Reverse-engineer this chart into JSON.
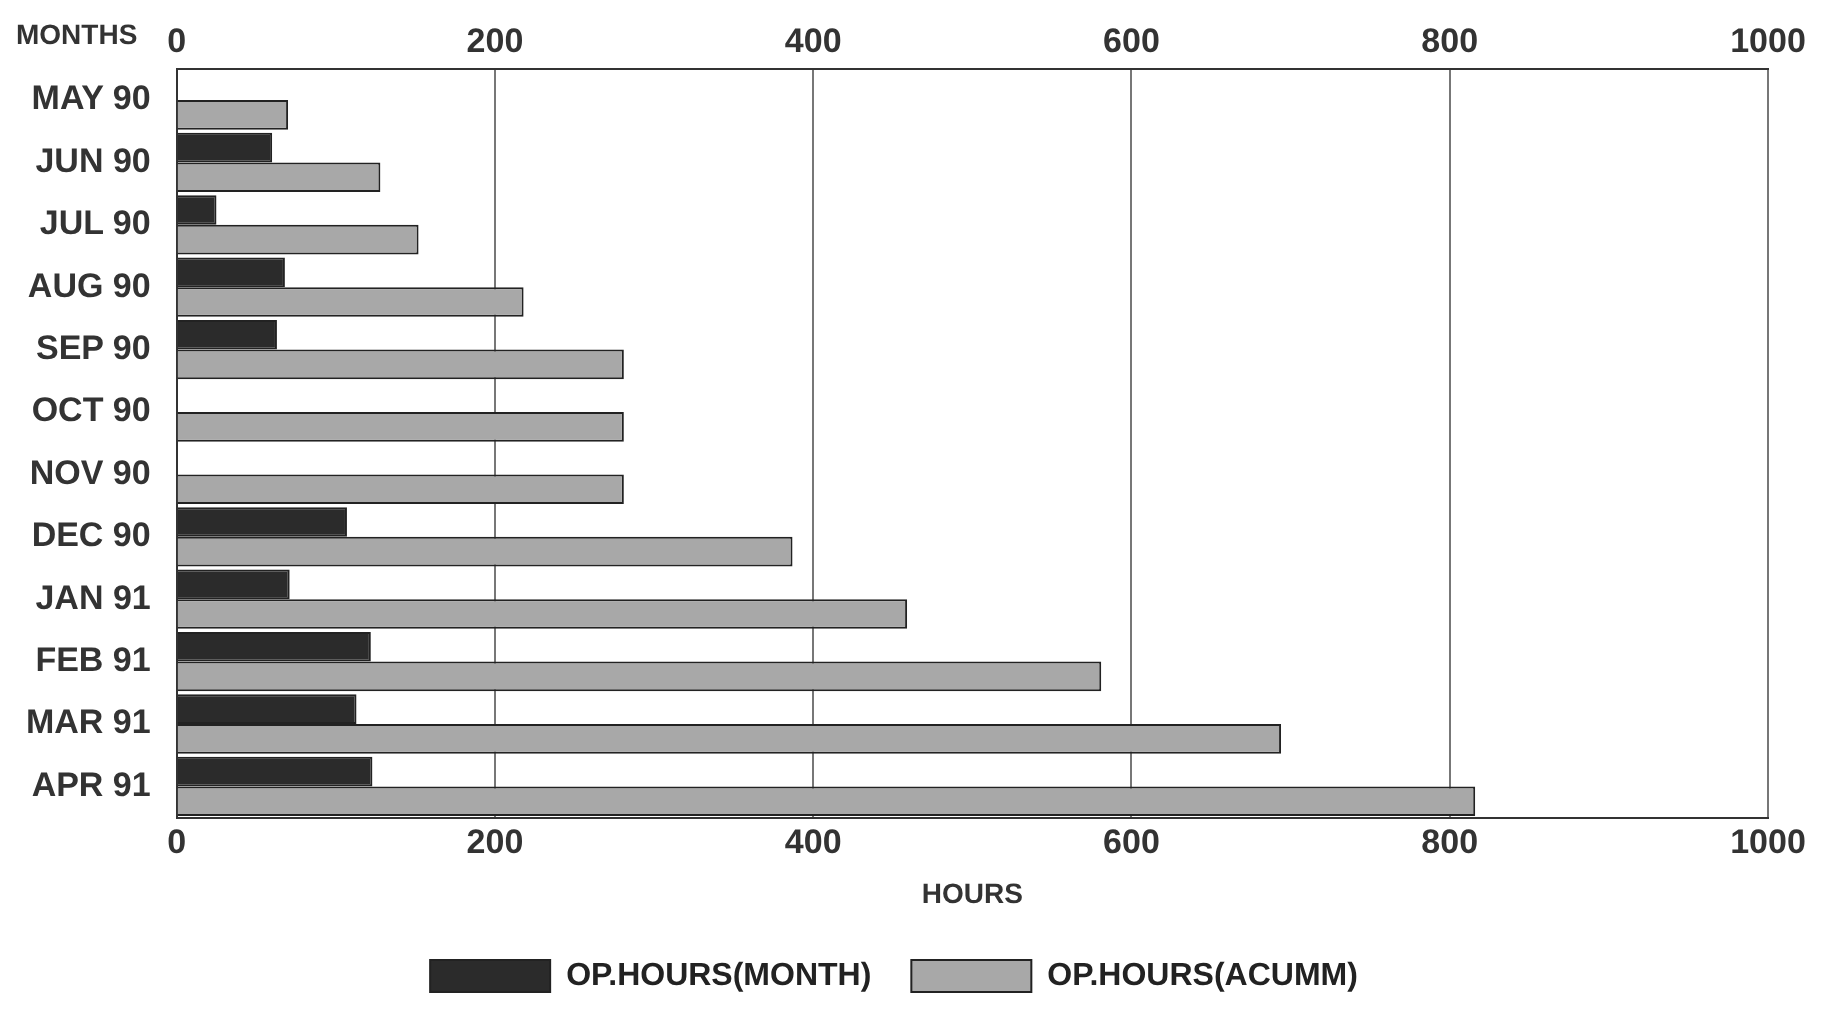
{
  "chart_data": {
    "type": "bar",
    "orientation": "horizontal",
    "xlabel": "HOURS",
    "ylabel": "MONTHS",
    "categories": [
      "MAY 90",
      "JUN 90",
      "JUL 90",
      "AUG 90",
      "SEP 90",
      "OCT 90",
      "NOV 90",
      "DEC 90",
      "JAN 91",
      "FEB 91",
      "MAR 91",
      "APR 91"
    ],
    "series": [
      {
        "name": "OP.HOURS(MONTH)",
        "color": "#2b2b2b",
        "values": [
          null,
          60,
          25,
          68,
          63,
          null,
          null,
          107,
          71,
          122,
          113,
          123
        ]
      },
      {
        "name": "OP.HOURS(ACUMM)",
        "color": "#a8a8a8",
        "values": [
          70,
          128,
          152,
          218,
          281,
          281,
          281,
          387,
          459,
          581,
          694,
          816
        ]
      }
    ],
    "xlim": [
      0,
      1000
    ],
    "xticks": [
      0,
      200,
      400,
      600,
      800,
      1000
    ],
    "x2lim": [
      0,
      1000
    ],
    "x2ticks": [
      0,
      200,
      400,
      600,
      800,
      1000
    ],
    "grid": "x",
    "legend": "bottom"
  }
}
